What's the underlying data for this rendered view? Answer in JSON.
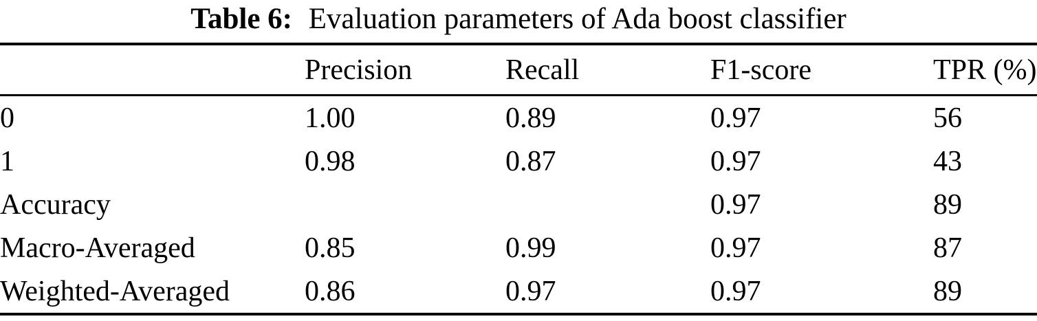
{
  "title": {
    "label": "Table 6:",
    "text": "Evaluation parameters of Ada boost classifier"
  },
  "table": {
    "columns": [
      "",
      "Precision",
      "Recall",
      "F1-score",
      "TPR (%)"
    ],
    "rows": [
      [
        "0",
        "1.00",
        "0.89",
        "0.97",
        "56"
      ],
      [
        "1",
        "0.98",
        "0.87",
        "0.97",
        "43"
      ],
      [
        "Accuracy",
        "",
        "",
        "0.97",
        "89"
      ],
      [
        "Macro-Averaged",
        "0.85",
        "0.99",
        "0.97",
        "87"
      ],
      [
        "Weighted-Averaged",
        "0.86",
        "0.97",
        "0.97",
        "89"
      ]
    ]
  },
  "colors": {
    "text": "#000000",
    "background": "#ffffff",
    "rule": "#000000"
  }
}
